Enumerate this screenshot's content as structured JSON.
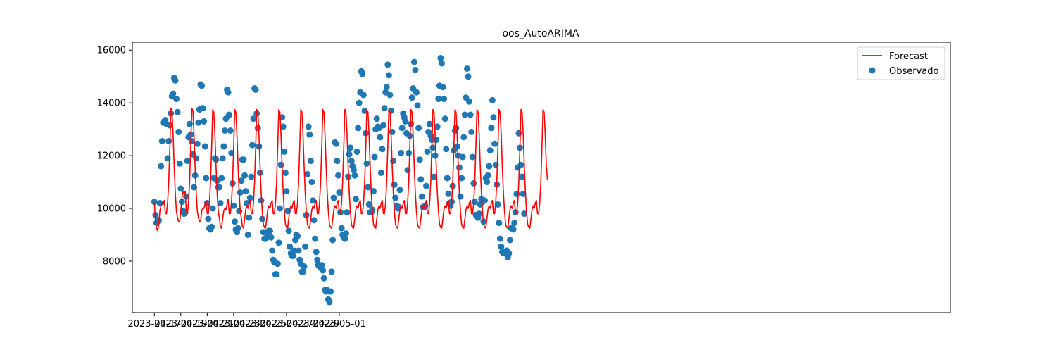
{
  "chart_data": {
    "type": "line",
    "title": "oos_AutoARIMA",
    "xlabel": "",
    "ylabel": "",
    "x_unit": "hours since 2023-04-17 00:00 (2-hour steps)",
    "xlim": [
      -40,
      1446
    ],
    "ylim": [
      6050,
      16300
    ],
    "x_ticks": [
      {
        "hours": 0,
        "label": "2023-04-17"
      },
      {
        "hours": 48,
        "label": "2023-04-19"
      },
      {
        "hours": 96,
        "label": "2023-04-21"
      },
      {
        "hours": 144,
        "label": "2023-04-23"
      },
      {
        "hours": 192,
        "label": "2023-04-25"
      },
      {
        "hours": 240,
        "label": "2023-04-27"
      },
      {
        "hours": 288,
        "label": "2023-04-29"
      },
      {
        "hours": 336,
        "label": "2023-05-01"
      }
    ],
    "y_ticks": [
      8000,
      10000,
      12000,
      14000,
      16000
    ],
    "legend_position": "top-right",
    "series": [
      {
        "name": "Forecast",
        "kind": "line",
        "color": "#ff0000",
        "values": [
          10200,
          9500,
          9250,
          9150,
          9400,
          9900,
          10100,
          10200,
          10150,
          10300,
          9800,
          9800,
          10200,
          11000,
          12200,
          13800,
          13700,
          12800,
          11600,
          10600,
          9900,
          9650,
          9500,
          9500,
          9900,
          10400,
          10650,
          10550,
          10650,
          9900,
          9800,
          10200,
          11000,
          12300,
          13800,
          13700,
          12800,
          11600,
          10600,
          9900,
          9650,
          9500,
          9500,
          9900,
          10000,
          10000,
          10150,
          10300,
          9800,
          9800,
          10200,
          11000,
          12300,
          13750,
          13650,
          12800,
          11600,
          10600,
          9900,
          9650,
          9300,
          9250,
          9600,
          9900,
          10000,
          9950,
          10150,
          10350,
          9800,
          9800,
          10200,
          11000,
          12300,
          13750,
          13650,
          12800,
          11600,
          10600,
          9900,
          9650,
          9300,
          9250,
          9600,
          9950,
          10100,
          10000,
          10200,
          10300,
          9800,
          9800,
          10200,
          11000,
          12300,
          13750,
          13650,
          12800,
          11600,
          10600,
          9900,
          9400,
          9280,
          9250,
          9600,
          9950,
          10100,
          10000,
          10200,
          10300,
          9800,
          9800,
          10200,
          11000,
          12300,
          13750,
          13650,
          12800,
          11600,
          10600,
          9900,
          9400,
          9280,
          9250,
          9600,
          9950,
          10100,
          10000,
          10200,
          10300,
          9800,
          9800,
          10200,
          11000,
          12300,
          13750,
          13650,
          12800,
          11600,
          10600,
          9900,
          9400,
          9280,
          9250,
          9600,
          9950,
          10100,
          10000,
          10200,
          10300,
          9800,
          9800,
          10200,
          11000,
          12300,
          13750,
          13650,
          12800,
          11600,
          10600,
          9900,
          9400,
          9280,
          9250,
          9600,
          9950,
          10100,
          10000,
          10200,
          10300,
          9800,
          9800,
          10200,
          11000,
          12300,
          13750,
          13650,
          12800,
          11600,
          10600,
          9900,
          9400,
          9280,
          9250,
          9600,
          9950,
          10100,
          10000,
          10200,
          10300,
          9800,
          9800,
          10200,
          11000,
          12300,
          13750,
          13650,
          12800,
          11600,
          10600,
          9900,
          9400,
          9280,
          9250,
          9600,
          9950,
          10100,
          10000,
          10200,
          10300,
          9800,
          9800,
          10200,
          11000,
          12300,
          13750,
          13650,
          12800,
          11600,
          10600,
          9900,
          9400,
          9280,
          9250,
          9600,
          9950,
          10100,
          10000,
          10200,
          10300,
          9800,
          9800,
          10200,
          11000,
          12300,
          13750,
          13650,
          12800,
          11600,
          10600,
          9900,
          9400,
          9280,
          9250,
          9600,
          9950,
          10100,
          10000,
          10200,
          10300,
          9800,
          9800,
          10200,
          11000,
          12300,
          13750,
          13650,
          12800,
          11600,
          10600,
          9900,
          9400,
          9280,
          9250,
          9600,
          9950,
          10100,
          10000,
          10200,
          10300,
          9800,
          9800,
          10200,
          11000,
          12300,
          13750,
          13650,
          12800,
          11600,
          10600,
          9900,
          9400,
          9280,
          9250,
          9600,
          9950,
          10100,
          10000,
          10200,
          10300,
          9800,
          9800,
          10200,
          11000,
          12300,
          13750,
          13650,
          12800,
          11600,
          10600,
          9900,
          9400,
          9280,
          9250,
          9600,
          9950,
          10100,
          10000,
          10200,
          10300,
          9800,
          9800,
          10200,
          11000,
          12300,
          13750,
          13650,
          12800,
          11600,
          10600,
          9900,
          9400,
          9280,
          9250,
          9600,
          9950,
          10100,
          10000,
          10200,
          10300,
          9800,
          9800,
          10200,
          11000,
          12300,
          13750,
          13650,
          12800,
          11600,
          10600,
          9900,
          9400,
          9280,
          9250,
          9600,
          9950,
          10100,
          10000,
          10200,
          10300,
          9800,
          9800,
          10200,
          11000,
          12300,
          13750,
          13650,
          12800,
          11600,
          11100
        ]
      },
      {
        "name": "Observado",
        "kind": "scatter",
        "color": "#1f77b4",
        "values": [
          10250,
          9750,
          9450,
          9500,
          9550,
          10200,
          11600,
          12550,
          13250,
          13300,
          13350,
          13200,
          11900,
          12550,
          13150,
          13600,
          14250,
          14350,
          14950,
          14850,
          14150,
          13650,
          12900,
          11700,
          10750,
          10250,
          9900,
          9800,
          9850,
          10450,
          11800,
          12700,
          13200,
          12800,
          12550,
          12050,
          10800,
          11250,
          11900,
          12450,
          13250,
          13750,
          14700,
          14650,
          13800,
          13300,
          12350,
          11150,
          10200,
          9600,
          9250,
          9200,
          9300,
          10000,
          11150,
          11900,
          11850,
          11050,
          10800,
          10800,
          10200,
          11150,
          11900,
          12350,
          12950,
          13400,
          14500,
          14400,
          13550,
          12950,
          12100,
          10950,
          10100,
          9500,
          9200,
          9100,
          9250,
          9900,
          10600,
          11050,
          11850,
          11850,
          11250,
          10650,
          10200,
          9000,
          9650,
          10400,
          11200,
          12400,
          13400,
          14550,
          14500,
          13600,
          13050,
          12350,
          11350,
          10300,
          9600,
          9100,
          8850,
          8850,
          8900,
          9100,
          9150,
          9150,
          8900,
          8400,
          8050,
          7950,
          7500,
          7500,
          7900,
          8700,
          10000,
          11650,
          13450,
          13100,
          12150,
          11350,
          10650,
          9900,
          9150,
          8550,
          8300,
          8200,
          8200,
          8400,
          8800,
          9000,
          8950,
          8400,
          8050,
          7900,
          7600,
          7600,
          7800,
          8550,
          9750,
          11300,
          13100,
          12800,
          11800,
          11000,
          10300,
          9550,
          8850,
          8350,
          8050,
          7850,
          7800,
          7750,
          7850,
          7650,
          7350,
          6900,
          6850,
          6900,
          6550,
          6450,
          6850,
          7600,
          8800,
          10400,
          12500,
          12450,
          11800,
          11250,
          10600,
          9850,
          9250,
          9000,
          8900,
          8850,
          9050,
          9850,
          11200,
          12050,
          12300,
          11800,
          11600,
          11450,
          11250,
          10350,
          12150,
          13050,
          14000,
          14400,
          15200,
          15100,
          14300,
          13700,
          12850,
          11700,
          10800,
          10150,
          9850,
          9850,
          9950,
          10650,
          11950,
          13000,
          13400,
          13100,
          13050,
          12700,
          11350,
          12250,
          13150,
          13800,
          14400,
          14600,
          15450,
          15050,
          14300,
          13700,
          12900,
          11800,
          10900,
          10400,
          10100,
          10000,
          10050,
          10700,
          12100,
          13050,
          13600,
          13450,
          13300,
          12850,
          11450,
          12100,
          12750,
          13200,
          14200,
          14550,
          15550,
          15250,
          14400,
          13900,
          13050,
          11850,
          11100,
          10450,
          10050,
          10050,
          10100,
          10850,
          12150,
          12900,
          13200,
          12750,
          12600,
          12300,
          11200,
          12000,
          12600,
          13100,
          14150,
          14650,
          15700,
          15500,
          14600,
          14150,
          13400,
          12250,
          11150,
          10550,
          10200,
          10100,
          10250,
          10850,
          12200,
          12950,
          13050,
          12350,
          12000,
          11550,
          10450,
          11150,
          11950,
          12700,
          13550,
          14200,
          15300,
          15000,
          14050,
          13550,
          12900,
          11950,
          10950,
          10250,
          9750,
          9700,
          9650,
          9800,
          10150,
          10350,
          10250,
          9500,
          10300,
          11150,
          11000,
          11250,
          11600,
          12200,
          13050,
          14100,
          13450,
          12450,
          11650,
          10900,
          10150,
          9450,
          8850,
          8550,
          8350,
          8300,
          8300,
          8350,
          8400,
          8150,
          8300,
          8800,
          9250,
          9250,
          9200,
          9450,
          9850,
          10550,
          11550,
          12850,
          12300,
          11650,
          11200,
          10550,
          9800
        ]
      }
    ]
  }
}
